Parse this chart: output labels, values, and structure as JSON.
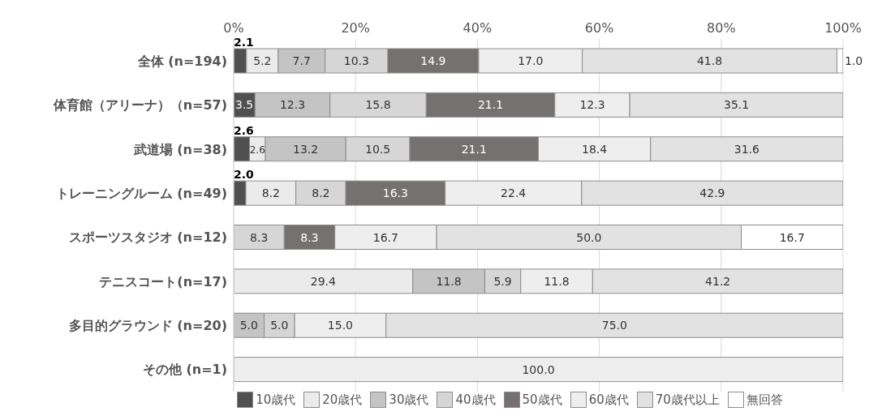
{
  "chart_data": {
    "type": "bar",
    "orientation": "horizontal",
    "stacked": true,
    "categories": [
      "全体 (n=194)",
      "体育館（アリーナ）（n=57)",
      "武道場 (n=38)",
      "トレーニングルーム (n=49)",
      "スポーツスタジオ (n=12)",
      "テニスコート(n=17)",
      "多目的グラウンド (n=20)",
      "その他 (n=1)"
    ],
    "series": [
      {
        "name": "10歳代",
        "color": "#505050",
        "values": [
          2.1,
          3.5,
          2.6,
          2.0,
          null,
          null,
          null,
          null
        ],
        "value_labels": [
          "2.1",
          "3.5",
          "2.6",
          "2.0",
          null,
          null,
          null,
          null
        ]
      },
      {
        "name": "20歳代",
        "color": "#ebebeb",
        "values": [
          5.2,
          null,
          2.6,
          8.2,
          null,
          29.4,
          null,
          null
        ],
        "value_labels": [
          "5.2",
          null,
          "2.6",
          "8.2",
          null,
          "29.4",
          null,
          null
        ]
      },
      {
        "name": "30歳代",
        "color": "#c4c4c4",
        "values": [
          7.7,
          12.3,
          13.2,
          null,
          null,
          11.8,
          5.0,
          null
        ],
        "value_labels": [
          "7.7",
          "12.3",
          "13.2",
          null,
          null,
          "11.8",
          "5.0",
          null
        ]
      },
      {
        "name": "40歳代",
        "color": "#d6d6d6",
        "values": [
          10.3,
          15.8,
          10.5,
          8.2,
          8.3,
          5.9,
          5.0,
          null
        ],
        "value_labels": [
          "10.3",
          "15.8",
          "10.5",
          "8.2",
          "8.3",
          "5.9",
          "5.0",
          null
        ]
      },
      {
        "name": "50歳代",
        "color": "#767171",
        "values": [
          14.9,
          21.1,
          21.1,
          16.3,
          8.3,
          null,
          null,
          null
        ],
        "value_labels": [
          "14.9",
          "21.1",
          "21.1",
          "16.3",
          "8.3",
          null,
          null,
          null
        ]
      },
      {
        "name": "60歳代",
        "color": "#eeeeee",
        "values": [
          17.0,
          12.3,
          18.4,
          22.4,
          16.7,
          11.8,
          15.0,
          100.0
        ],
        "value_labels": [
          "17.0",
          "12.3",
          "18.4",
          "22.4",
          "16.7",
          "11.8",
          "15.0",
          "100.0"
        ]
      },
      {
        "name": "70歳代以上",
        "color": "#e2e2e2",
        "values": [
          41.8,
          35.1,
          31.6,
          42.9,
          50.0,
          41.2,
          75.0,
          null
        ],
        "value_labels": [
          "41.8",
          "35.1",
          "31.6",
          "42.9",
          "50.0",
          "41.2",
          "75.0",
          null
        ]
      },
      {
        "name": "無回答",
        "color": "#ffffff",
        "values": [
          1.0,
          null,
          null,
          null,
          16.7,
          null,
          null,
          null
        ],
        "value_labels": [
          "1.0",
          null,
          null,
          null,
          "16.7",
          null,
          null,
          null
        ]
      }
    ],
    "xlim": [
      0,
      100
    ],
    "xticks": [
      {
        "value": 0,
        "label": "0%"
      },
      {
        "value": 20,
        "label": "20%"
      },
      {
        "value": 40,
        "label": "40%"
      },
      {
        "value": 60,
        "label": "60%"
      },
      {
        "value": 80,
        "label": "80%"
      },
      {
        "value": 100,
        "label": "100%"
      }
    ],
    "grid": "x",
    "legend": "bottom"
  }
}
